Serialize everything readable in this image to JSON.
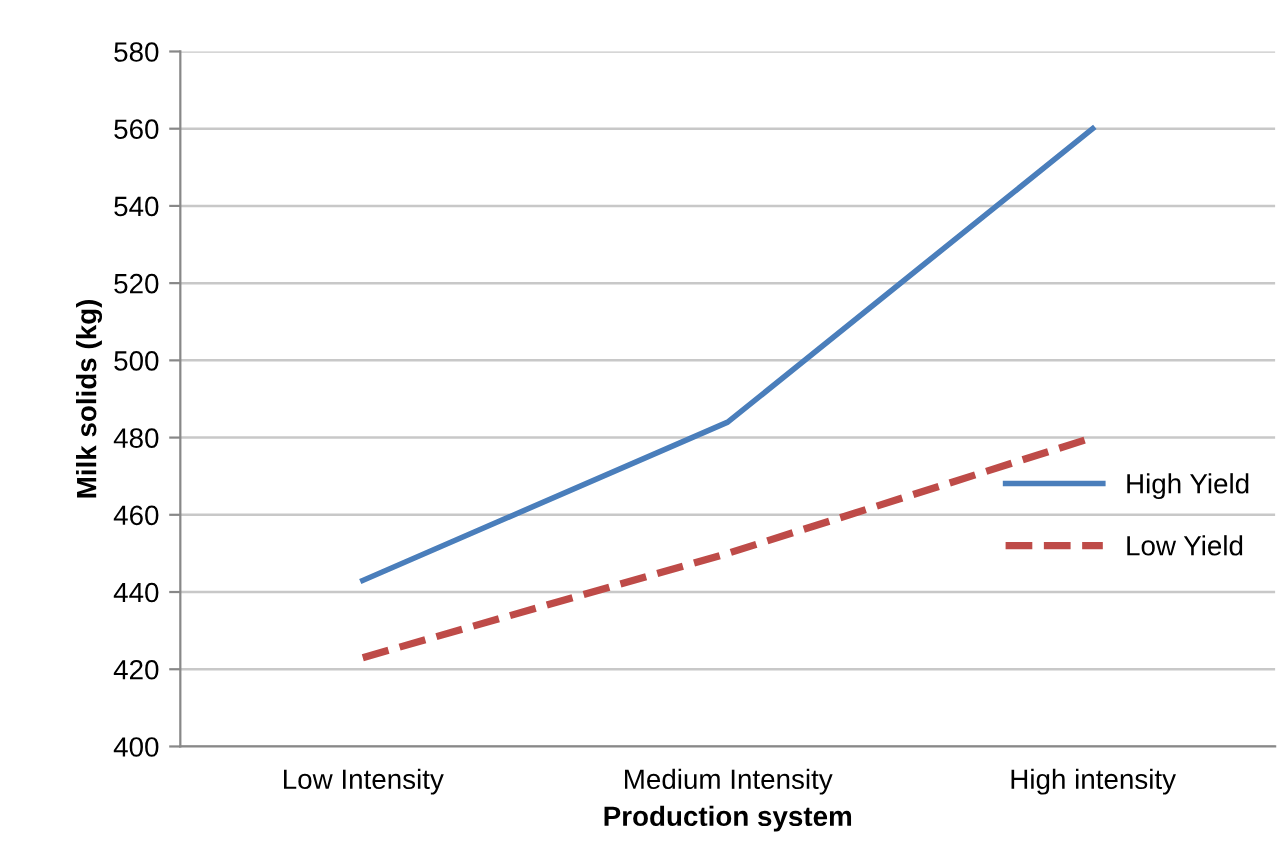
{
  "chart_data": {
    "type": "line",
    "xlabel": "Production system",
    "ylabel": "Milk solids (kg)",
    "categories": [
      "Low Intensity",
      "Medium Intensity",
      "High intensity"
    ],
    "series": [
      {
        "name": "High Yield",
        "color": "#4a7ebb",
        "values": [
          443,
          484,
          560
        ],
        "line_style": "solid"
      },
      {
        "name": "Low Yield",
        "color": "#be4b48",
        "values": [
          423,
          450,
          480
        ],
        "line_style": "dashed"
      }
    ],
    "ylim": [
      400,
      580
    ],
    "yticks": [
      400,
      420,
      440,
      460,
      480,
      500,
      520,
      540,
      560,
      580
    ],
    "grid": "y",
    "legend": "right",
    "marker": "none"
  }
}
